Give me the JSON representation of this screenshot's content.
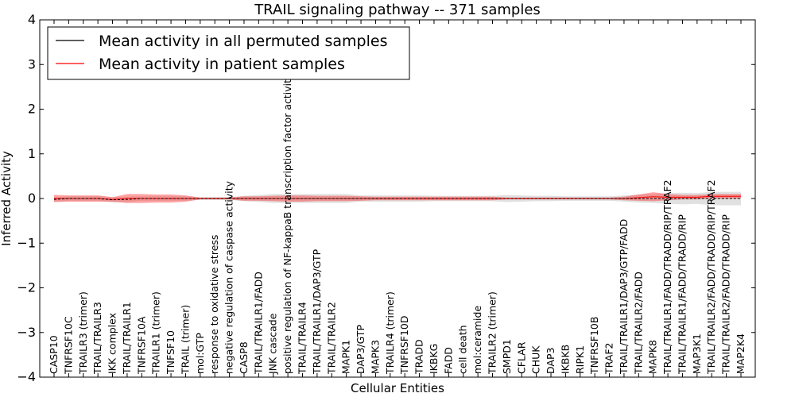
{
  "chart_data": {
    "type": "line",
    "title": "TRAIL signaling pathway -- 371 samples",
    "xlabel": "Cellular Entities",
    "ylabel": "Inferred Activity",
    "ylim": [
      -4,
      4
    ],
    "yticks": [
      "4",
      "3",
      "2",
      "1",
      "0",
      "−1",
      "−2",
      "−3",
      "−4"
    ],
    "ytick_values": [
      4,
      3,
      2,
      1,
      0,
      -1,
      -2,
      -3,
      -4
    ],
    "categories": [
      "CASP10",
      "TNFRSF10C",
      "TRAILR3 (trimer)",
      "TRAIL/TRAILR3",
      "IKK complex",
      "TRAIL/TRAILR1",
      "TNFRSF10A",
      "TRAILR1 (trimer)",
      "TNFSF10",
      "TRAIL (trimer)",
      "mol:GTP",
      "response to oxidative stress",
      "negative regulation of caspase activity",
      "CASP8",
      "TRAIL/TRAILR1/FADD",
      "JNK cascade",
      "positive regulation of NF-kappaB transcription factor activity",
      "TRAIL/TRAILR4",
      "TRAIL/TRAILR1/DAP3/GTP",
      "TRAIL/TRAILR2",
      "MAPK1",
      "DAP3/GTP",
      "MAPK3",
      "TRAILR4 (trimer)",
      "TNFRSF10D",
      "TRADD",
      "IKBKG",
      "FADD",
      "cell death",
      "mol:ceramide",
      "TRAILR2 (trimer)",
      "SMPD1",
      "CFLAR",
      "CHUK",
      "DAP3",
      "IKBKB",
      "RIPK1",
      "TNFRSF10B",
      "TRAF2",
      "TRAIL/TRAILR1/DAP3/GTP/FADD",
      "TRAIL/TRAILR2/FADD",
      "MAPK8",
      "TRAIL/TRAILR1/FADD/TRADD/RIP/TRAF2",
      "TRAIL/TRAILR1/FADD/TRADD/RIP",
      "MAP3K1",
      "TRAIL/TRAILR2/FADD/TRADD/RIP/TRAF2",
      "TRAIL/TRAILR2/FADD/TRADD/RIP",
      "MAP2K4"
    ],
    "series": [
      {
        "name": "Mean activity in all permuted samples",
        "color": "#000000",
        "values": [
          -0.02,
          0.0,
          0.0,
          0.0,
          -0.03,
          -0.02,
          0.0,
          0.0,
          0.0,
          0.0,
          0.0,
          0.0,
          0.0,
          0.0,
          0.0,
          0.0,
          0.0,
          0.0,
          0.0,
          0.0,
          0.0,
          0.0,
          0.0,
          0.0,
          0.0,
          0.0,
          0.0,
          0.0,
          0.0,
          0.0,
          0.0,
          0.0,
          0.0,
          0.0,
          0.0,
          0.0,
          0.0,
          0.0,
          0.0,
          0.0,
          0.0,
          0.0,
          0.0,
          0.0,
          0.0,
          0.0,
          0.0,
          0.0
        ],
        "spread": [
          0.05,
          0.05,
          0.05,
          0.05,
          0.06,
          0.06,
          0.05,
          0.05,
          0.05,
          0.05,
          0.03,
          0.03,
          0.03,
          0.06,
          0.08,
          0.1,
          0.1,
          0.1,
          0.1,
          0.1,
          0.1,
          0.07,
          0.07,
          0.07,
          0.07,
          0.07,
          0.06,
          0.06,
          0.06,
          0.06,
          0.06,
          0.08,
          0.07,
          0.06,
          0.06,
          0.05,
          0.05,
          0.05,
          0.05,
          0.07,
          0.09,
          0.1,
          0.12,
          0.13,
          0.12,
          0.15,
          0.15,
          0.15
        ]
      },
      {
        "name": "Mean activity in patient samples",
        "color": "#ff0000",
        "values": [
          0.0,
          0.0,
          0.0,
          0.0,
          -0.02,
          0.0,
          0.0,
          0.0,
          0.0,
          0.0,
          0.0,
          0.0,
          0.0,
          0.0,
          0.0,
          0.0,
          0.0,
          0.0,
          0.0,
          0.0,
          0.0,
          0.0,
          0.0,
          0.0,
          0.0,
          0.0,
          0.0,
          0.0,
          0.0,
          0.0,
          0.0,
          0.0,
          0.0,
          0.0,
          0.0,
          0.0,
          0.0,
          0.0,
          0.0,
          0.0,
          0.02,
          0.04,
          0.03,
          0.03,
          0.03,
          0.05,
          0.05,
          0.05
        ],
        "spread": [
          0.08,
          0.07,
          0.07,
          0.07,
          0.05,
          0.1,
          0.1,
          0.09,
          0.09,
          0.07,
          0.02,
          0.02,
          0.02,
          0.05,
          0.05,
          0.06,
          0.07,
          0.07,
          0.06,
          0.06,
          0.06,
          0.05,
          0.04,
          0.04,
          0.04,
          0.04,
          0.04,
          0.04,
          0.04,
          0.04,
          0.04,
          0.02,
          0.02,
          0.02,
          0.02,
          0.02,
          0.02,
          0.02,
          0.02,
          0.04,
          0.07,
          0.1,
          0.07,
          0.05,
          0.05,
          0.05,
          0.05,
          0.05
        ]
      }
    ],
    "legend": {
      "position": "upper-left",
      "entries": [
        "Mean activity in all permuted samples",
        "Mean activity in patient samples"
      ]
    }
  }
}
